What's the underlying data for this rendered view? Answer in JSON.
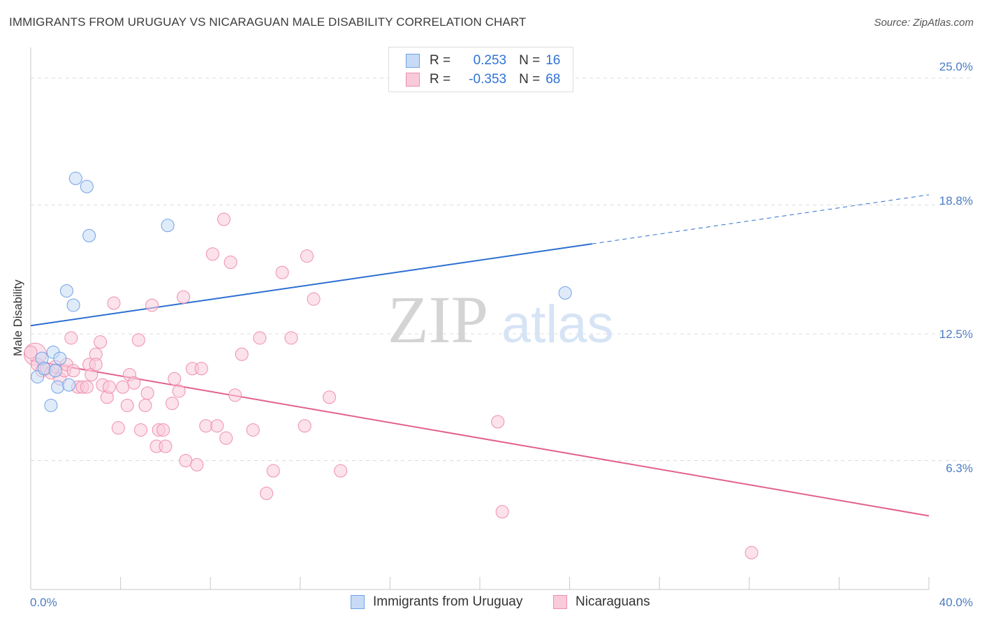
{
  "chart_data": {
    "type": "scatter",
    "title": "IMMIGRANTS FROM URUGUAY VS NICARAGUAN MALE DISABILITY CORRELATION CHART",
    "source": "Source: ZipAtlas.com",
    "watermark": {
      "zip": "ZIP",
      "atlas": "atlas"
    },
    "xlabel": "",
    "ylabel": "Male Disability",
    "xlim": [
      0.0,
      40.0
    ],
    "ylim": [
      0.0,
      26.5
    ],
    "x_tick_labels": {
      "min": "0.0%",
      "max": "40.0%"
    },
    "y_ticks": [
      {
        "value": 25.0,
        "label": "25.0%"
      },
      {
        "value": 18.8,
        "label": "18.8%"
      },
      {
        "value": 12.5,
        "label": "12.5%"
      },
      {
        "value": 6.3,
        "label": "6.3%"
      }
    ],
    "legend": [
      {
        "r_label": "R =",
        "r_value": "0.253",
        "n_label": "N =",
        "n_value": "16"
      },
      {
        "r_label": "R =",
        "r_value": "-0.353",
        "n_label": "N =",
        "n_value": "68"
      }
    ],
    "series": [
      {
        "name": "Immigrants from Uruguay",
        "color": "#6fa2e6",
        "fill": "#c7dbf6",
        "trend": {
          "x0": 0.0,
          "y0": 12.9,
          "x1": 25.0,
          "y1": 16.9,
          "dash_to_x": 40.0,
          "dash_to_y": 19.3,
          "color": "#2c6fd1"
        },
        "points": [
          [
            0.3,
            10.4
          ],
          [
            0.5,
            11.3
          ],
          [
            0.6,
            10.8
          ],
          [
            0.9,
            9.0
          ],
          [
            1.0,
            11.6
          ],
          [
            1.1,
            10.7
          ],
          [
            1.2,
            9.9
          ],
          [
            1.3,
            11.3
          ],
          [
            1.6,
            14.6
          ],
          [
            1.7,
            10.0
          ],
          [
            1.9,
            13.9
          ],
          [
            2.0,
            20.1
          ],
          [
            2.5,
            19.7
          ],
          [
            2.6,
            17.3
          ],
          [
            6.1,
            17.8
          ],
          [
            23.8,
            14.5
          ]
        ]
      },
      {
        "name": "Nicaraguans",
        "color": "#ee8fae",
        "fill": "#f9cad9",
        "trend": {
          "x0": 0.0,
          "y0": 11.2,
          "x1": 40.0,
          "y1": 3.6,
          "color": "#e2608f"
        },
        "points": [
          [
            0.2,
            11.5
          ],
          [
            0.3,
            11.0
          ],
          [
            0.5,
            10.7
          ],
          [
            0.7,
            10.8
          ],
          [
            0.9,
            10.6
          ],
          [
            1.1,
            10.9
          ],
          [
            1.3,
            10.3
          ],
          [
            1.5,
            10.7
          ],
          [
            1.6,
            11.0
          ],
          [
            1.8,
            12.3
          ],
          [
            1.9,
            10.7
          ],
          [
            2.1,
            9.9
          ],
          [
            2.3,
            9.9
          ],
          [
            2.5,
            9.9
          ],
          [
            2.6,
            11.0
          ],
          [
            2.7,
            10.5
          ],
          [
            2.9,
            11.5
          ],
          [
            3.1,
            12.1
          ],
          [
            3.2,
            10.0
          ],
          [
            3.4,
            9.4
          ],
          [
            3.5,
            9.9
          ],
          [
            3.7,
            14.0
          ],
          [
            3.9,
            7.9
          ],
          [
            4.1,
            9.9
          ],
          [
            4.3,
            9.0
          ],
          [
            4.4,
            10.5
          ],
          [
            4.6,
            10.1
          ],
          [
            4.8,
            12.2
          ],
          [
            4.9,
            7.8
          ],
          [
            5.1,
            9.0
          ],
          [
            5.2,
            9.6
          ],
          [
            5.4,
            13.9
          ],
          [
            5.6,
            7.0
          ],
          [
            5.7,
            7.8
          ],
          [
            5.9,
            7.8
          ],
          [
            6.0,
            7.0
          ],
          [
            6.3,
            9.1
          ],
          [
            6.4,
            10.3
          ],
          [
            6.6,
            9.7
          ],
          [
            6.8,
            14.3
          ],
          [
            6.9,
            6.3
          ],
          [
            7.2,
            10.8
          ],
          [
            7.4,
            6.1
          ],
          [
            7.6,
            10.8
          ],
          [
            7.8,
            8.0
          ],
          [
            8.1,
            16.4
          ],
          [
            8.3,
            8.0
          ],
          [
            8.6,
            18.1
          ],
          [
            8.7,
            7.4
          ],
          [
            8.9,
            16.0
          ],
          [
            9.1,
            9.5
          ],
          [
            9.4,
            11.5
          ],
          [
            9.9,
            7.8
          ],
          [
            10.2,
            12.3
          ],
          [
            10.5,
            4.7
          ],
          [
            10.8,
            5.8
          ],
          [
            11.2,
            15.5
          ],
          [
            11.6,
            12.3
          ],
          [
            12.2,
            8.0
          ],
          [
            12.3,
            16.3
          ],
          [
            12.6,
            14.2
          ],
          [
            13.3,
            9.4
          ],
          [
            13.8,
            5.8
          ],
          [
            20.8,
            8.2
          ],
          [
            21.0,
            3.8
          ],
          [
            32.1,
            1.8
          ],
          [
            0.0,
            11.6
          ],
          [
            2.9,
            11.0
          ]
        ]
      }
    ]
  }
}
